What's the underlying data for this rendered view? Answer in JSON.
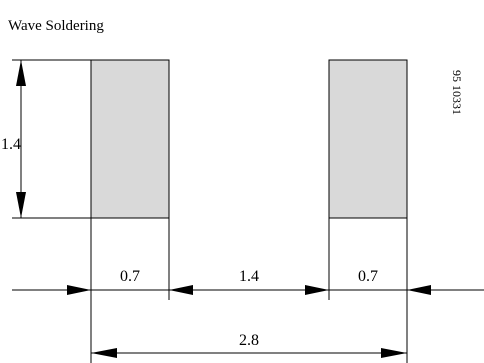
{
  "title": "Wave Soldering",
  "drawing_number": "95 10331",
  "dimensions": {
    "pad_height": "1.4",
    "pad_width_left": "0.7",
    "gap": "1.4",
    "pad_width_right": "0.7",
    "overall_width": "2.8"
  },
  "colors": {
    "pad_fill": "#d9d9d9",
    "line": "#000000",
    "background": "#ffffff"
  }
}
